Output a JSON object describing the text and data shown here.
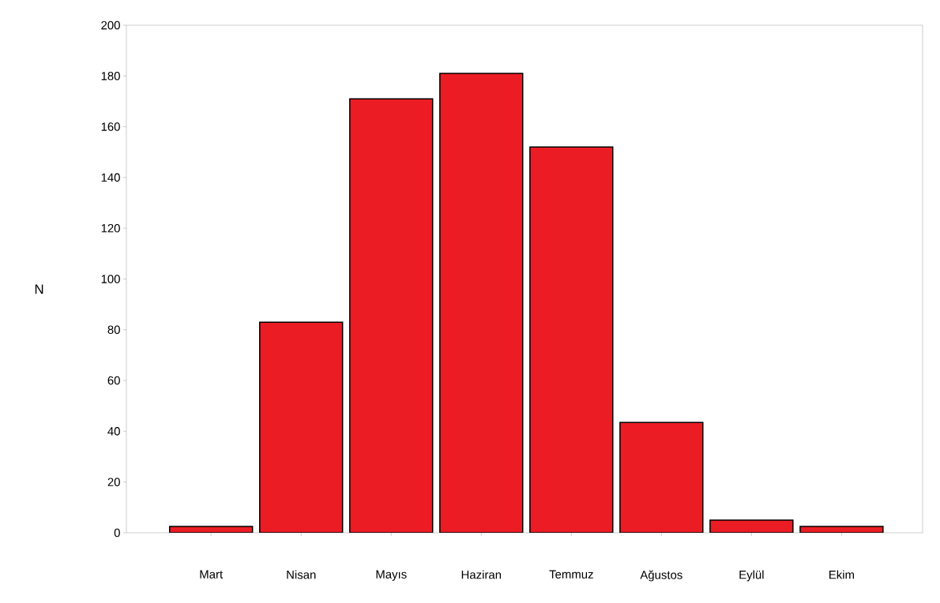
{
  "chart_data": {
    "type": "bar",
    "ylabel": "N",
    "categories": [
      "Mart",
      "Nisan",
      "Mayıs",
      "Haziran",
      "Temmuz",
      "Ağustos",
      "Eylül",
      "Ekim"
    ],
    "values": [
      2.5,
      83,
      171,
      181,
      152,
      43.5,
      5,
      2.5
    ],
    "color": "#ec1c24",
    "ylim": [
      0,
      200
    ],
    "yticks": [
      0,
      20,
      40,
      60,
      80,
      100,
      120,
      140,
      160,
      180,
      200
    ],
    "grid": false
  }
}
